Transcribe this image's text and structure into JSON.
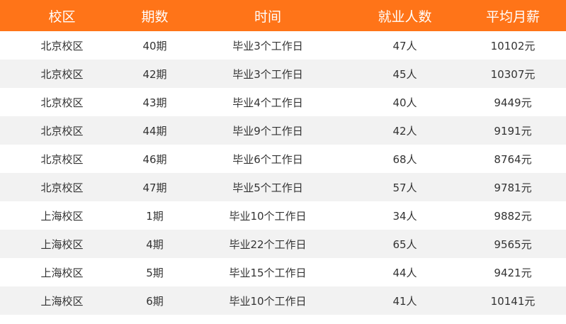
{
  "headers": [
    "校区",
    "期数",
    "时间",
    "就业人数",
    "平均月薪"
  ],
  "rows": [
    [
      "北京校区",
      "40期",
      "毕业3个工作日",
      "47人",
      "10102元"
    ],
    [
      "北京校区",
      "42期",
      "毕业3个工作日",
      "45人",
      "10307元"
    ],
    [
      "北京校区",
      "43期",
      "毕业4个工作日",
      "40人",
      "9449元"
    ],
    [
      "北京校区",
      "44期",
      "毕业9个工作日",
      "42人",
      "9191元"
    ],
    [
      "北京校区",
      "46期",
      "毕业6个工作日",
      "68人",
      "8764元"
    ],
    [
      "北京校区",
      "47期",
      "毕业5个工作日",
      "57人",
      "9781元"
    ],
    [
      "上海校区",
      "1期",
      "毕业10个工作日",
      "34人",
      "9882元"
    ],
    [
      "上海校区",
      "4期",
      "毕业22个工作日",
      "65人",
      "9565元"
    ],
    [
      "上海校区",
      "5期",
      "毕业15个工作日",
      "44人",
      "9421元"
    ],
    [
      "上海校区",
      "6期",
      "毕业10个工作日",
      "41人",
      "10141元"
    ]
  ],
  "colors": {
    "header_bg": "#ff7418",
    "header_text": "#ffffff",
    "stripe": "#f2f2f2"
  }
}
